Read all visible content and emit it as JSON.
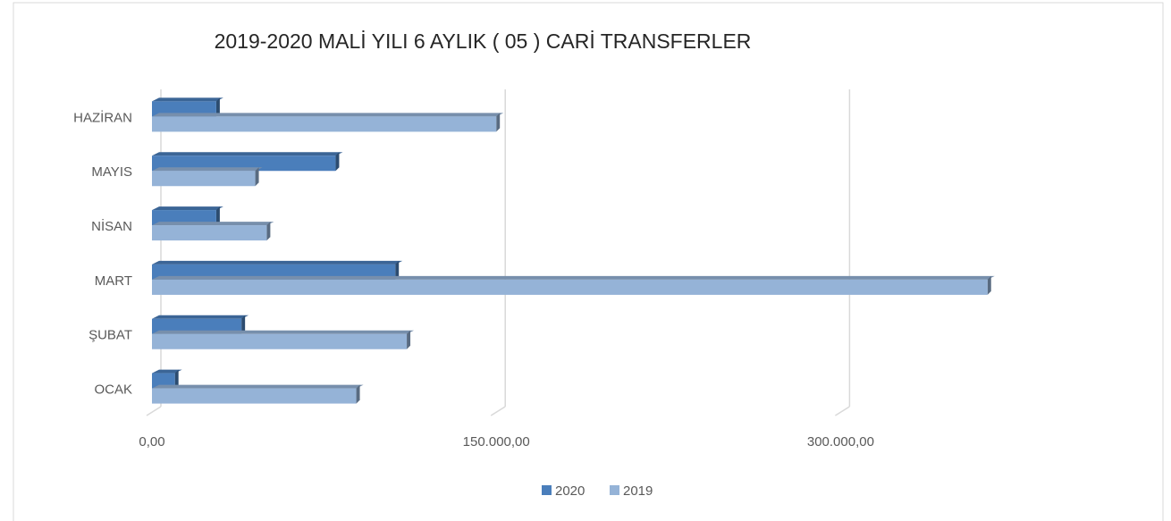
{
  "chart_data": {
    "type": "bar",
    "orientation": "horizontal",
    "title": "2019-2020 MALİ YILI 6 AYLIK ( 05 ) CARİ TRANSFERLER",
    "categories": [
      "OCAK",
      "ŞUBAT",
      "MART",
      "NİSAN",
      "MAYIS",
      "HAZİRAN"
    ],
    "series": [
      {
        "name": "2020",
        "color": "#4a7ebb",
        "values": [
          10000,
          39000,
          106000,
          28000,
          80000,
          28000
        ]
      },
      {
        "name": "2019",
        "color": "#95b3d7",
        "values": [
          89000,
          111000,
          364000,
          50000,
          45000,
          150000
        ]
      }
    ],
    "xlim": [
      0,
      375000
    ],
    "xticks": [
      {
        "value": 0,
        "label": "0,00"
      },
      {
        "value": 150000,
        "label": "150.000,00"
      },
      {
        "value": 300000,
        "label": "300.000,00"
      }
    ],
    "grid": true,
    "legend": "bottom"
  }
}
